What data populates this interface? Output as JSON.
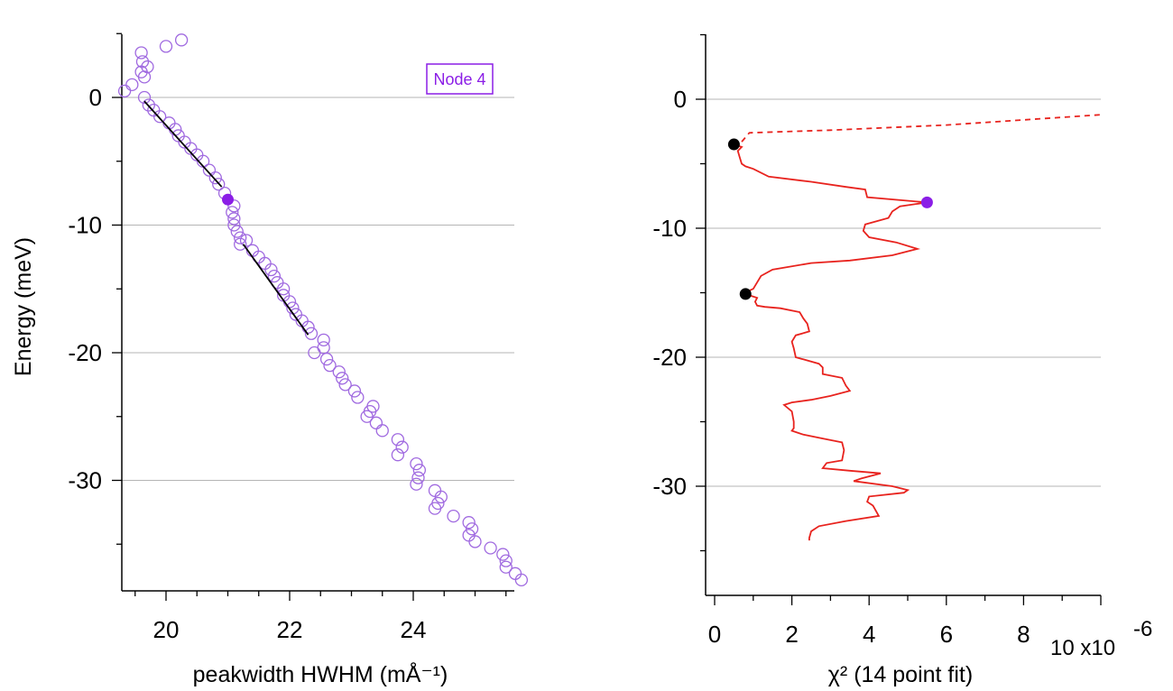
{
  "chart_data": [
    {
      "type": "scatter",
      "xlabel": "peakwidth HWHM (mÅ⁻¹)",
      "ylabel": "Energy (meV)",
      "xlim": [
        19.2,
        25.8
      ],
      "ylim": [
        -38.5,
        5
      ],
      "xticks": [
        "20",
        "22",
        "24"
      ],
      "yticks": [
        "0",
        "-10",
        "-20",
        "-30"
      ],
      "grid": "horizontal",
      "annotation": "Node 4",
      "annotation_position": "top-right",
      "colors": {
        "points": "#a06ae0",
        "highlight": "#8b1ee6",
        "fit": "#000000"
      },
      "series": [
        {
          "marker": "open-circle",
          "points": [
            [
              20.25,
              4.5
            ],
            [
              20.0,
              4.0
            ],
            [
              19.6,
              3.5
            ],
            [
              19.62,
              2.8
            ],
            [
              19.7,
              2.4
            ],
            [
              19.6,
              2.0
            ],
            [
              19.65,
              1.6
            ],
            [
              19.45,
              1.0
            ],
            [
              19.33,
              0.5
            ],
            [
              19.65,
              0.0
            ],
            [
              19.72,
              -0.6
            ],
            [
              19.8,
              -1.0
            ],
            [
              19.9,
              -1.5
            ],
            [
              20.05,
              -2.0
            ],
            [
              20.15,
              -2.5
            ],
            [
              20.2,
              -3.0
            ],
            [
              20.3,
              -3.5
            ],
            [
              20.4,
              -4.0
            ],
            [
              20.5,
              -4.5
            ],
            [
              20.6,
              -5.0
            ],
            [
              20.7,
              -5.7
            ],
            [
              20.8,
              -6.3
            ],
            [
              20.85,
              -6.8
            ],
            [
              20.95,
              -7.5
            ],
            [
              21.1,
              -8.5
            ],
            [
              21.07,
              -9.0
            ],
            [
              21.1,
              -9.5
            ],
            [
              21.1,
              -10.0
            ],
            [
              21.15,
              -10.5
            ],
            [
              21.2,
              -11.0
            ],
            [
              21.3,
              -11.2
            ],
            [
              21.2,
              -11.5
            ],
            [
              21.4,
              -12.0
            ],
            [
              21.5,
              -12.5
            ],
            [
              21.6,
              -13.0
            ],
            [
              21.7,
              -13.5
            ],
            [
              21.75,
              -14.0
            ],
            [
              21.8,
              -14.5
            ],
            [
              21.9,
              -15.0
            ],
            [
              21.9,
              -15.5
            ],
            [
              22.0,
              -16.0
            ],
            [
              22.05,
              -16.5
            ],
            [
              22.1,
              -17.0
            ],
            [
              22.2,
              -17.5
            ],
            [
              22.3,
              -18.0
            ],
            [
              22.35,
              -18.5
            ],
            [
              22.55,
              -19.0
            ],
            [
              22.55,
              -19.6
            ],
            [
              22.4,
              -20.0
            ],
            [
              22.6,
              -20.5
            ],
            [
              22.65,
              -21.0
            ],
            [
              22.8,
              -21.5
            ],
            [
              22.85,
              -22.0
            ],
            [
              22.9,
              -22.5
            ],
            [
              23.05,
              -23.0
            ],
            [
              23.1,
              -23.5
            ],
            [
              23.35,
              -24.2
            ],
            [
              23.3,
              -24.6
            ],
            [
              23.25,
              -25.0
            ],
            [
              23.4,
              -25.5
            ],
            [
              23.5,
              -26.1
            ],
            [
              23.75,
              -26.8
            ],
            [
              23.82,
              -27.4
            ],
            [
              23.75,
              -28.0
            ],
            [
              24.05,
              -28.7
            ],
            [
              24.1,
              -29.2
            ],
            [
              24.08,
              -29.8
            ],
            [
              24.05,
              -30.3
            ],
            [
              24.35,
              -30.8
            ],
            [
              24.45,
              -31.3
            ],
            [
              24.4,
              -31.8
            ],
            [
              24.35,
              -32.2
            ],
            [
              24.65,
              -32.8
            ],
            [
              24.9,
              -33.3
            ],
            [
              24.95,
              -33.8
            ],
            [
              24.9,
              -34.3
            ],
            [
              25.0,
              -34.8
            ],
            [
              25.25,
              -35.3
            ],
            [
              25.45,
              -35.8
            ],
            [
              25.5,
              -36.3
            ],
            [
              25.5,
              -36.8
            ],
            [
              25.65,
              -37.3
            ],
            [
              25.75,
              -37.8
            ]
          ]
        },
        {
          "marker": "filled-circle",
          "points": [
            [
              21.0,
              -8.0
            ]
          ]
        },
        {
          "marker": "line",
          "points": [
            [
              19.65,
              -0.3
            ],
            [
              20.9,
              -7.0
            ]
          ]
        },
        {
          "marker": "line",
          "points": [
            [
              21.25,
              -11.5
            ],
            [
              22.3,
              -18.6
            ]
          ]
        }
      ]
    },
    {
      "type": "line",
      "xlabel": "χ² (14 point fit)",
      "ylabel": "",
      "x_exponent_label": "10 x10",
      "x_exponent": "-6",
      "xlim": [
        -0.3,
        10
      ],
      "ylim": [
        -38.5,
        5
      ],
      "xticks": [
        "0",
        "2",
        "4",
        "6",
        "8"
      ],
      "yticks": [
        "0",
        "-10",
        "-20",
        "-30"
      ],
      "grid": "horizontal",
      "colors": {
        "line": "#e8231e",
        "marker": "#000000",
        "highlight": "#8b1ee6"
      },
      "series": [
        {
          "style": "dashed",
          "points": [
            [
              0.7,
              -3.3
            ],
            [
              0.9,
              -2.6
            ],
            [
              3.0,
              -2.4
            ],
            [
              6.0,
              -2.0
            ],
            [
              10.0,
              -1.2
            ]
          ]
        },
        {
          "style": "solid",
          "points": [
            [
              0.5,
              -3.5
            ],
            [
              0.7,
              -3.7
            ],
            [
              0.6,
              -4.0
            ],
            [
              0.65,
              -4.5
            ],
            [
              0.7,
              -5.0
            ],
            [
              0.8,
              -5.2
            ],
            [
              1.0,
              -5.4
            ],
            [
              1.4,
              -6.0
            ],
            [
              2.5,
              -6.4
            ],
            [
              3.4,
              -6.8
            ],
            [
              3.9,
              -7.0
            ],
            [
              3.95,
              -7.6
            ],
            [
              5.5,
              -8.0
            ],
            [
              4.8,
              -8.3
            ],
            [
              4.6,
              -8.7
            ],
            [
              4.5,
              -9.2
            ],
            [
              3.9,
              -9.7
            ],
            [
              3.85,
              -10.2
            ],
            [
              4.0,
              -10.7
            ],
            [
              4.7,
              -11.1
            ],
            [
              5.25,
              -11.6
            ],
            [
              4.6,
              -12.1
            ],
            [
              3.5,
              -12.5
            ],
            [
              2.5,
              -12.7
            ],
            [
              1.5,
              -13.2
            ],
            [
              1.2,
              -13.7
            ],
            [
              1.1,
              -14.2
            ],
            [
              1.0,
              -14.7
            ],
            [
              0.85,
              -14.9
            ],
            [
              0.9,
              -15.2
            ],
            [
              1.1,
              -15.4
            ],
            [
              1.05,
              -15.7
            ],
            [
              1.1,
              -16.0
            ],
            [
              1.3,
              -16.1
            ],
            [
              1.7,
              -16.2
            ],
            [
              2.2,
              -16.5
            ],
            [
              2.3,
              -17.0
            ],
            [
              2.4,
              -17.4
            ],
            [
              2.45,
              -18.0
            ],
            [
              2.1,
              -18.3
            ],
            [
              2.0,
              -18.8
            ],
            [
              2.05,
              -19.3
            ],
            [
              2.1,
              -20.0
            ],
            [
              2.7,
              -20.5
            ],
            [
              2.8,
              -20.8
            ],
            [
              2.8,
              -21.3
            ],
            [
              3.3,
              -21.6
            ],
            [
              3.4,
              -22.2
            ],
            [
              3.5,
              -22.6
            ],
            [
              3.0,
              -23.0
            ],
            [
              2.5,
              -23.3
            ],
            [
              2.0,
              -23.5
            ],
            [
              1.8,
              -23.7
            ],
            [
              2.0,
              -24.2
            ],
            [
              2.05,
              -25.0
            ],
            [
              2.05,
              -25.5
            ],
            [
              2.0,
              -25.7
            ],
            [
              2.3,
              -26.0
            ],
            [
              2.8,
              -26.3
            ],
            [
              3.3,
              -26.6
            ],
            [
              3.35,
              -27.2
            ],
            [
              3.3,
              -28.0
            ],
            [
              2.9,
              -28.2
            ],
            [
              2.8,
              -28.6
            ],
            [
              3.5,
              -28.8
            ],
            [
              4.3,
              -29.0
            ],
            [
              3.8,
              -29.4
            ],
            [
              3.6,
              -29.6
            ],
            [
              4.6,
              -30.0
            ],
            [
              5.0,
              -30.3
            ],
            [
              4.9,
              -30.5
            ],
            [
              4.0,
              -30.8
            ],
            [
              3.95,
              -31.2
            ],
            [
              4.1,
              -31.5
            ],
            [
              4.25,
              -32.3
            ],
            [
              3.4,
              -32.7
            ],
            [
              2.7,
              -33.1
            ],
            [
              2.5,
              -33.5
            ],
            [
              2.45,
              -34.0
            ],
            [
              2.45,
              -34.2
            ]
          ]
        },
        {
          "marker": "filled-circle-black",
          "points": [
            [
              0.5,
              -3.5
            ],
            [
              0.8,
              -15.1
            ]
          ]
        },
        {
          "marker": "filled-circle-purple",
          "points": [
            [
              5.5,
              -8.0
            ]
          ]
        }
      ]
    }
  ]
}
